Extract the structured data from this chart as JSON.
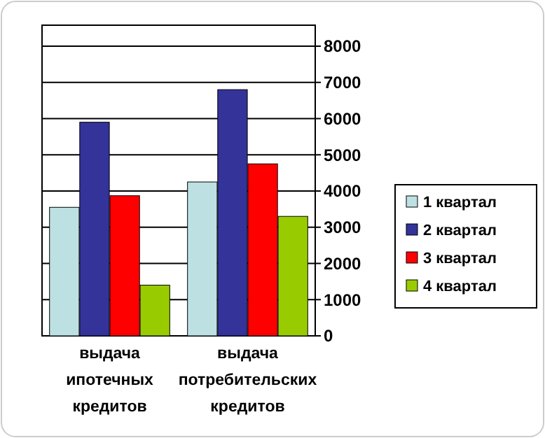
{
  "chart_data": {
    "type": "bar",
    "categories": [
      "выдача ипотечных кредитов",
      "выдача потребительских кредитов"
    ],
    "series": [
      {
        "name": "1 квартал",
        "color": "#bde0e3",
        "values": [
          3550,
          4250
        ]
      },
      {
        "name": "2 квартал",
        "color": "#333399",
        "values": [
          5900,
          6800
        ]
      },
      {
        "name": "3 квартал",
        "color": "#ff0000",
        "values": [
          3870,
          4750
        ]
      },
      {
        "name": "4 квартал",
        "color": "#99cc00",
        "values": [
          1400,
          3300
        ]
      }
    ],
    "ylim": [
      0,
      8000
    ],
    "yticks": [
      0,
      1000,
      2000,
      3000,
      4000,
      5000,
      6000,
      7000,
      8000
    ],
    "grid": "y",
    "legend": "right"
  }
}
